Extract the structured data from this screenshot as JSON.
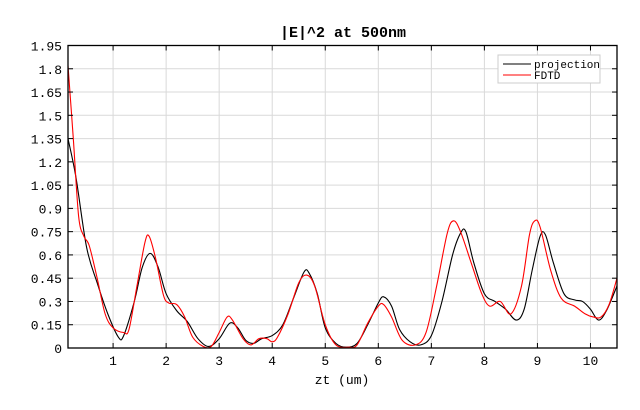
{
  "chart_data": {
    "type": "line",
    "title": "|E|^2 at 500nm",
    "xlabel": "zt (um)",
    "ylabel": "",
    "xlim": [
      0.15,
      10.5
    ],
    "ylim": [
      0,
      1.95
    ],
    "xticks": [
      1,
      2,
      3,
      4,
      5,
      6,
      7,
      8,
      9,
      10
    ],
    "xtick_labels": [
      "1",
      "2",
      "3",
      "4",
      "5",
      "6",
      "7",
      "8",
      "9",
      "10"
    ],
    "yticks": [
      0,
      0.15,
      0.3,
      0.45,
      0.6,
      0.75,
      0.9,
      1.05,
      1.2,
      1.35,
      1.5,
      1.65,
      1.8,
      1.95
    ],
    "ytick_labels": [
      "0",
      "0.15",
      "0.3",
      "0.45",
      "0.6",
      "0.75",
      "0.9",
      "1.05",
      "1.2",
      "1.35",
      "1.5",
      "1.65",
      "1.8",
      "1.95"
    ],
    "grid": true,
    "legend_position": "top-right",
    "series": [
      {
        "name": "projection",
        "color": "#000000",
        "x": [
          0.15,
          0.3,
          0.5,
          0.7,
          0.9,
          1.1,
          1.2,
          1.4,
          1.55,
          1.7,
          1.85,
          2.0,
          2.2,
          2.4,
          2.6,
          2.8,
          3.0,
          3.2,
          3.35,
          3.5,
          3.65,
          3.8,
          4.0,
          4.2,
          4.4,
          4.6,
          4.7,
          4.85,
          5.0,
          5.2,
          5.4,
          5.6,
          5.8,
          6.0,
          6.1,
          6.25,
          6.4,
          6.6,
          6.8,
          7.0,
          7.2,
          7.4,
          7.55,
          7.65,
          7.8,
          8.0,
          8.2,
          8.4,
          8.6,
          8.75,
          8.9,
          9.05,
          9.15,
          9.3,
          9.5,
          9.7,
          9.85,
          10.0,
          10.15,
          10.3,
          10.5
        ],
        "y": [
          1.35,
          1.1,
          0.65,
          0.42,
          0.22,
          0.07,
          0.08,
          0.3,
          0.52,
          0.61,
          0.52,
          0.35,
          0.24,
          0.17,
          0.06,
          0.01,
          0.06,
          0.16,
          0.13,
          0.05,
          0.03,
          0.06,
          0.08,
          0.15,
          0.32,
          0.49,
          0.48,
          0.35,
          0.13,
          0.03,
          0.005,
          0.03,
          0.15,
          0.29,
          0.33,
          0.27,
          0.12,
          0.04,
          0.02,
          0.08,
          0.3,
          0.6,
          0.74,
          0.75,
          0.55,
          0.35,
          0.3,
          0.25,
          0.18,
          0.25,
          0.5,
          0.72,
          0.73,
          0.55,
          0.35,
          0.31,
          0.3,
          0.25,
          0.18,
          0.24,
          0.4
        ]
      },
      {
        "name": "FDTD",
        "color": "#ff0000",
        "x": [
          0.15,
          0.25,
          0.35,
          0.45,
          0.55,
          0.7,
          0.85,
          1.0,
          1.2,
          1.3,
          1.45,
          1.6,
          1.68,
          1.8,
          1.95,
          2.05,
          2.2,
          2.35,
          2.5,
          2.7,
          2.85,
          3.0,
          3.15,
          3.25,
          3.45,
          3.6,
          3.75,
          3.9,
          4.0,
          4.1,
          4.3,
          4.5,
          4.65,
          4.8,
          5.0,
          5.2,
          5.45,
          5.6,
          5.8,
          6.0,
          6.1,
          6.25,
          6.45,
          6.7,
          6.9,
          7.1,
          7.3,
          7.42,
          7.55,
          7.75,
          7.95,
          8.1,
          8.3,
          8.5,
          8.7,
          8.85,
          8.95,
          9.05,
          9.25,
          9.45,
          9.7,
          9.9,
          10.05,
          10.2,
          10.35,
          10.5
        ],
        "y": [
          1.82,
          1.35,
          0.85,
          0.72,
          0.66,
          0.45,
          0.22,
          0.13,
          0.1,
          0.12,
          0.4,
          0.68,
          0.72,
          0.58,
          0.34,
          0.29,
          0.28,
          0.2,
          0.07,
          0.01,
          0.01,
          0.1,
          0.2,
          0.18,
          0.06,
          0.02,
          0.06,
          0.06,
          0.04,
          0.07,
          0.22,
          0.42,
          0.47,
          0.4,
          0.15,
          0.02,
          0.005,
          0.02,
          0.16,
          0.27,
          0.28,
          0.2,
          0.05,
          0.02,
          0.1,
          0.4,
          0.74,
          0.82,
          0.75,
          0.55,
          0.35,
          0.27,
          0.3,
          0.22,
          0.4,
          0.73,
          0.82,
          0.78,
          0.5,
          0.32,
          0.27,
          0.22,
          0.2,
          0.2,
          0.28,
          0.45
        ]
      }
    ]
  }
}
